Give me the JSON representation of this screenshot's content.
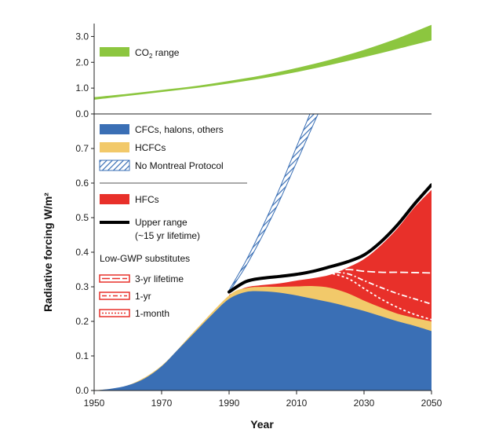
{
  "chart_data": [
    {
      "type": "area",
      "panel": "top",
      "ylim": [
        0,
        3.5
      ],
      "xlim": [
        1950,
        2050
      ],
      "yticks": [
        "0.0",
        "1.0",
        "2.0",
        "3.0"
      ],
      "legend": {
        "co2_main": "CO",
        "co2_sub": "2",
        "co2_rest": " range"
      },
      "series": [
        {
          "name": "CO2 range",
          "x": [
            1950,
            1960,
            1970,
            1980,
            1990,
            2000,
            2010,
            2020,
            2030,
            2040,
            2050
          ],
          "low": [
            0.55,
            0.7,
            0.85,
            1.0,
            1.18,
            1.38,
            1.62,
            1.9,
            2.2,
            2.52,
            2.85
          ],
          "high": [
            0.65,
            0.78,
            0.93,
            1.08,
            1.28,
            1.5,
            1.78,
            2.1,
            2.48,
            2.93,
            3.45
          ],
          "color": "#8cc63f"
        }
      ]
    },
    {
      "type": "area",
      "panel": "bottom",
      "xlabel": "Year",
      "ylabel": "Radiative forcing W/m²",
      "xlim": [
        1950,
        2050
      ],
      "ylim": [
        0,
        0.8
      ],
      "xticks": [
        "1950",
        "1970",
        "1990",
        "2010",
        "2030",
        "2050"
      ],
      "yticks": [
        "0.0",
        "0.1",
        "0.2",
        "0.3",
        "0.4",
        "0.5",
        "0.6",
        "0.7"
      ],
      "legend": {
        "cfc": "CFCs, halons, others",
        "hcfc": "HCFCs",
        "nomp": "No Montreal Protocol",
        "hfc": "HFCs",
        "upper1": "Upper range",
        "upper2": "(~15 yr lifetime)",
        "lowgwp": "Low-GWP substitutes",
        "l3yr": "3-yr lifetime",
        "l1yr": "1-yr",
        "l1mo": "1-month"
      },
      "colors": {
        "cfc": "#3a6fb5",
        "hcfc": "#f2c96a",
        "nomp": "#3a6fb5",
        "hfc": "#e8302a",
        "upper": "#000000"
      },
      "series": [
        {
          "name": "CFCs, halons, others",
          "x": [
            1950,
            1955,
            1960,
            1965,
            1970,
            1975,
            1980,
            1985,
            1990,
            1995,
            2000,
            2005,
            2010,
            2015,
            2020,
            2025,
            2030,
            2035,
            2040,
            2045,
            2050
          ],
          "y": [
            0.0,
            0.005,
            0.015,
            0.035,
            0.07,
            0.12,
            0.17,
            0.22,
            0.265,
            0.285,
            0.287,
            0.283,
            0.275,
            0.265,
            0.255,
            0.243,
            0.23,
            0.215,
            0.2,
            0.187,
            0.172
          ]
        },
        {
          "name": "HCFCs",
          "x": [
            1950,
            1960,
            1970,
            1980,
            1990,
            1995,
            2000,
            2005,
            2010,
            2015,
            2020,
            2025,
            2030,
            2035,
            2040,
            2045,
            2050
          ],
          "y": [
            0.0,
            0.015,
            0.072,
            0.175,
            0.275,
            0.296,
            0.3,
            0.3,
            0.301,
            0.302,
            0.297,
            0.282,
            0.26,
            0.24,
            0.222,
            0.21,
            0.2
          ]
        },
        {
          "name": "HFCs",
          "x": [
            1990,
            1995,
            2000,
            2005,
            2010,
            2015,
            2020,
            2025,
            2030,
            2035,
            2040,
            2045,
            2050
          ],
          "y": [
            0.277,
            0.298,
            0.305,
            0.31,
            0.318,
            0.325,
            0.335,
            0.355,
            0.38,
            0.42,
            0.47,
            0.53,
            0.58
          ]
        },
        {
          "name": "Upper range",
          "x": [
            1990,
            1995,
            2000,
            2005,
            2010,
            2015,
            2020,
            2025,
            2030,
            2035,
            2040,
            2045,
            2050
          ],
          "y": [
            0.285,
            0.315,
            0.325,
            0.33,
            0.336,
            0.345,
            0.358,
            0.372,
            0.392,
            0.43,
            0.48,
            0.54,
            0.595
          ]
        },
        {
          "name": "No Montreal Protocol",
          "x": [
            1990,
            1995,
            2000,
            2005,
            2010,
            2015,
            2020
          ],
          "low": [
            0.285,
            0.36,
            0.45,
            0.55,
            0.66,
            0.77,
            0.88
          ],
          "high": [
            0.29,
            0.375,
            0.475,
            0.585,
            0.705,
            0.825,
            0.95
          ]
        },
        {
          "name": "3-yr lifetime",
          "x": [
            2018,
            2025,
            2030,
            2035,
            2040,
            2045,
            2050
          ],
          "y": [
            0.345,
            0.35,
            0.345,
            0.342,
            0.342,
            0.341,
            0.34
          ]
        },
        {
          "name": "1-yr",
          "x": [
            2018,
            2025,
            2030,
            2035,
            2040,
            2045,
            2050
          ],
          "y": [
            0.345,
            0.338,
            0.318,
            0.298,
            0.28,
            0.265,
            0.25
          ]
        },
        {
          "name": "1-month",
          "x": [
            2018,
            2025,
            2030,
            2035,
            2040,
            2045,
            2050
          ],
          "y": [
            0.345,
            0.325,
            0.295,
            0.265,
            0.24,
            0.22,
            0.205
          ]
        }
      ]
    }
  ]
}
